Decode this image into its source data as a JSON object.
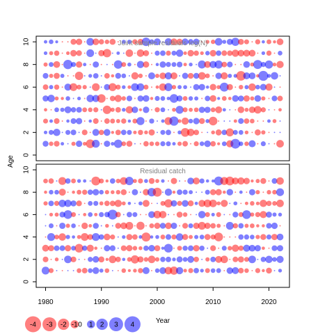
{
  "chart_data": {
    "type": "scatter",
    "subtype": "bubble residual plot",
    "ylabel": "Age",
    "xlabel": "Year",
    "x_range": [
      1980,
      2022
    ],
    "x_ticks": [
      1980,
      1990,
      2000,
      2010,
      2020
    ],
    "y_ticks": [
      0,
      2,
      4,
      6,
      8,
      10
    ],
    "colors": {
      "positive": "#0000ff",
      "negative": "#ff0000"
    },
    "bubble_opacity": 0.5,
    "panels": [
      {
        "title": "Joint sample residuals log(N)",
        "ages": [
          1,
          2,
          3,
          4,
          5,
          6,
          7,
          8,
          9,
          10
        ],
        "y_range": [
          0,
          10.5
        ]
      },
      {
        "title": "Residual catch",
        "ages": [
          1,
          2,
          3,
          4,
          5,
          6,
          7,
          8,
          9
        ],
        "y_range": [
          0,
          10.5
        ]
      }
    ],
    "legend": {
      "position": "bottom-left",
      "values": [
        -4,
        -3,
        -2,
        -1,
        0,
        1,
        2,
        3,
        4
      ],
      "labels": [
        "-4",
        "-3",
        "-2",
        "-1",
        "0",
        "1",
        "2",
        "3",
        "4"
      ]
    }
  }
}
